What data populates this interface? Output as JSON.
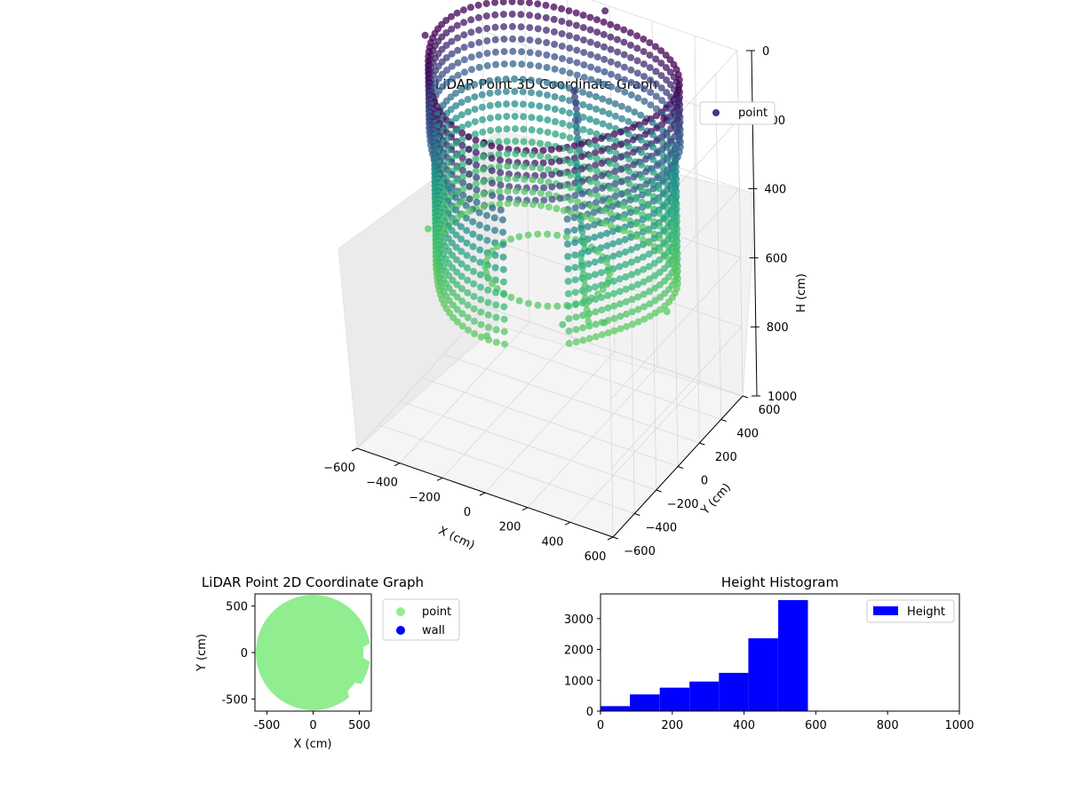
{
  "colors": {
    "point_dark": "#440154",
    "point_mid": "#31688e",
    "point_light": "#35b779",
    "pane": "#f2f2f2",
    "grid": "#d9d9d9",
    "point_2d": "#90ee90",
    "wall_2d": "#0000ff",
    "hist_bar": "#0000ff"
  },
  "chart_data": [
    {
      "type": "scatter3d",
      "title": "LiDAR Point 3D Coordinate Graph",
      "xlabel": "X (cm)",
      "ylabel": "Y (cm)",
      "zlabel": "H (cm)",
      "xticks": [
        "−600",
        "−400",
        "−200",
        "0",
        "200",
        "400",
        "600"
      ],
      "yticks": [
        "−600",
        "−400",
        "−200",
        "0",
        "200",
        "400",
        "600"
      ],
      "zticks": [
        "0",
        "200",
        "400",
        "600",
        "800",
        "1000"
      ],
      "xlim": [
        -600,
        600
      ],
      "ylim": [
        -600,
        600
      ],
      "zlim": [
        0,
        1000
      ],
      "z_inverted": true,
      "legend": {
        "label": "point",
        "placement": "upper-right"
      },
      "grid": true,
      "series": [
        {
          "name": "point",
          "shape": "cylindrical-wall",
          "radius_range_cm": [
            450,
            560
          ],
          "height_range_cm": [
            0,
            580
          ],
          "colormap": "viridis-by-height",
          "sample_points": [
            {
              "x": -560,
              "y": 0,
              "h": 0
            },
            {
              "x": 560,
              "y": 0,
              "h": 0
            },
            {
              "x": 0,
              "y": -560,
              "h": 0
            },
            {
              "x": 0,
              "y": 560,
              "h": 0
            },
            {
              "x": -560,
              "y": 0,
              "h": 560
            },
            {
              "x": 560,
              "y": 0,
              "h": 560
            },
            {
              "x": 0,
              "y": -560,
              "h": 560
            },
            {
              "x": 0,
              "y": 560,
              "h": 560
            },
            {
              "x": 300,
              "y": -450,
              "h": 500
            },
            {
              "x": 420,
              "y": -300,
              "h": 520
            }
          ],
          "interior_cluster": [
            {
              "x": 60,
              "y": 150,
              "h": 80
            },
            {
              "x": 80,
              "y": 120,
              "h": 150
            },
            {
              "x": 100,
              "y": 80,
              "h": 250
            },
            {
              "x": 160,
              "y": 0,
              "h": 380
            },
            {
              "x": 200,
              "y": -80,
              "h": 450
            },
            {
              "x": 250,
              "y": -150,
              "h": 520
            }
          ]
        }
      ]
    },
    {
      "type": "scatter",
      "title": "LiDAR Point 2D Coordinate Graph",
      "xlabel": "X (cm)",
      "ylabel": "Y (cm)",
      "xticks": [
        -500,
        0,
        500
      ],
      "yticks": [
        -500,
        0,
        500
      ],
      "xlim": [
        -630,
        630
      ],
      "ylim": [
        -630,
        630
      ],
      "legend": {
        "placement": "outside-right"
      },
      "series": [
        {
          "name": "point",
          "shape": "filled-disc",
          "radius": 620
        },
        {
          "name": "wall",
          "points": []
        }
      ]
    },
    {
      "type": "bar",
      "title": "Height Histogram",
      "xlim": [
        0,
        1000
      ],
      "ylim": [
        0,
        3800
      ],
      "xticks": [
        0,
        200,
        400,
        600,
        800,
        1000
      ],
      "yticks": [
        0,
        1000,
        2000,
        3000
      ],
      "legend": {
        "label": "Height",
        "placement": "top-right"
      },
      "bins": [
        {
          "from": 0,
          "to": 82,
          "count": 160
        },
        {
          "from": 82,
          "to": 165,
          "count": 540
        },
        {
          "from": 165,
          "to": 248,
          "count": 760
        },
        {
          "from": 248,
          "to": 330,
          "count": 960
        },
        {
          "from": 330,
          "to": 412,
          "count": 1240
        },
        {
          "from": 412,
          "to": 495,
          "count": 2360
        },
        {
          "from": 495,
          "to": 578,
          "count": 3600
        }
      ]
    }
  ]
}
